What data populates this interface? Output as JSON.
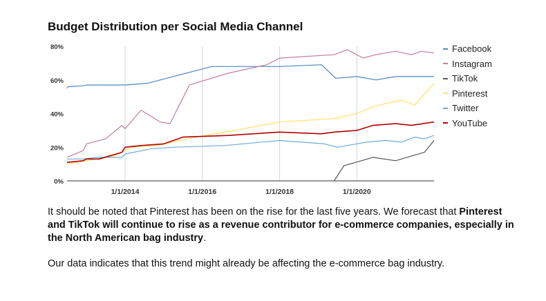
{
  "colors": {
    "Facebook": "#4a86c5",
    "Instagram": "#c27ba0",
    "TikTok": "#555555",
    "Pinterest": "#ffe066",
    "Twitter": "#6fa8dc",
    "YouTube": "#b00000"
  },
  "chart_data": {
    "type": "line",
    "title": "Budget Distribution per Social Media Channel",
    "xlabel": "",
    "ylabel": "",
    "x_range": [
      "2012-07-01",
      "2021-12-31"
    ],
    "ylim": [
      0,
      80
    ],
    "x_ticks": [
      "1/1/2014",
      "1/1/2016",
      "1/1/2018",
      "1/1/2020"
    ],
    "y_ticks": [
      "0%",
      "20%",
      "40%",
      "60%",
      "80%"
    ],
    "grid": "vertical",
    "legend_position": "right",
    "series": [
      {
        "name": "Facebook",
        "points": [
          [
            "2012-07-01",
            55
          ],
          [
            "2012-07-10",
            56
          ],
          [
            "2012-12-01",
            56.5
          ],
          [
            "2013-01-01",
            57
          ],
          [
            "2014-01-01",
            57
          ],
          [
            "2014-08-01",
            58
          ],
          [
            "2015-04-01",
            62
          ],
          [
            "2016-04-01",
            68
          ],
          [
            "2017-01-01",
            68
          ],
          [
            "2018-01-01",
            68
          ],
          [
            "2019-02-01",
            69
          ],
          [
            "2019-06-15",
            61
          ],
          [
            "2020-01-01",
            62
          ],
          [
            "2020-07-01",
            60
          ],
          [
            "2021-01-01",
            62
          ],
          [
            "2021-12-31",
            62
          ]
        ]
      },
      {
        "name": "Instagram",
        "points": [
          [
            "2012-07-01",
            14
          ],
          [
            "2012-12-01",
            18
          ],
          [
            "2013-01-01",
            22
          ],
          [
            "2013-07-01",
            25
          ],
          [
            "2013-12-01",
            33
          ],
          [
            "2014-01-01",
            31
          ],
          [
            "2014-06-01",
            42
          ],
          [
            "2014-12-01",
            35
          ],
          [
            "2015-03-01",
            34
          ],
          [
            "2015-09-01",
            57
          ],
          [
            "2016-09-01",
            64
          ],
          [
            "2017-09-01",
            69
          ],
          [
            "2018-01-01",
            73
          ],
          [
            "2019-06-01",
            75
          ],
          [
            "2019-10-01",
            78
          ],
          [
            "2020-03-01",
            73
          ],
          [
            "2020-07-01",
            75
          ],
          [
            "2021-01-01",
            77
          ],
          [
            "2021-06-01",
            75
          ],
          [
            "2021-09-01",
            77
          ],
          [
            "2021-12-31",
            76
          ]
        ]
      },
      {
        "name": "TikTok",
        "points": [
          [
            "2019-06-01",
            0
          ],
          [
            "2019-09-01",
            9
          ],
          [
            "2020-06-01",
            14
          ],
          [
            "2021-01-01",
            12
          ],
          [
            "2021-10-01",
            17
          ],
          [
            "2021-12-31",
            24
          ]
        ]
      },
      {
        "name": "Pinterest",
        "points": [
          [
            "2012-07-01",
            10
          ],
          [
            "2013-01-01",
            12
          ],
          [
            "2013-10-01",
            15
          ],
          [
            "2014-01-01",
            18
          ],
          [
            "2014-03-01",
            20
          ],
          [
            "2014-11-01",
            21
          ],
          [
            "2015-11-01",
            26
          ],
          [
            "2016-11-01",
            30
          ],
          [
            "2018-01-01",
            35
          ],
          [
            "2019-06-01",
            37
          ],
          [
            "2020-01-01",
            40
          ],
          [
            "2020-06-01",
            44
          ],
          [
            "2020-10-01",
            46
          ],
          [
            "2021-03-01",
            48
          ],
          [
            "2021-07-01",
            45
          ],
          [
            "2021-12-31",
            58
          ]
        ]
      },
      {
        "name": "Twitter",
        "points": [
          [
            "2012-07-01",
            13
          ],
          [
            "2012-12-01",
            13
          ],
          [
            "2013-04-01",
            14
          ],
          [
            "2013-12-01",
            14
          ],
          [
            "2014-01-01",
            16
          ],
          [
            "2014-09-01",
            19
          ],
          [
            "2015-04-01",
            20
          ],
          [
            "2016-08-01",
            21
          ],
          [
            "2018-01-01",
            24
          ],
          [
            "2019-03-01",
            22
          ],
          [
            "2019-07-01",
            20
          ],
          [
            "2020-04-01",
            23
          ],
          [
            "2020-10-01",
            24
          ],
          [
            "2021-03-01",
            23
          ],
          [
            "2021-07-01",
            26
          ],
          [
            "2021-10-01",
            25
          ],
          [
            "2021-12-31",
            27
          ]
        ]
      },
      {
        "name": "YouTube",
        "points": [
          [
            "2012-07-01",
            11
          ],
          [
            "2012-12-01",
            12
          ],
          [
            "2013-01-01",
            13
          ],
          [
            "2013-05-01",
            13
          ],
          [
            "2013-12-01",
            17
          ],
          [
            "2014-01-01",
            20
          ],
          [
            "2014-06-01",
            21
          ],
          [
            "2015-01-01",
            22
          ],
          [
            "2015-07-01",
            26
          ],
          [
            "2016-09-01",
            27
          ],
          [
            "2018-01-01",
            29
          ],
          [
            "2019-02-01",
            28
          ],
          [
            "2019-06-01",
            29
          ],
          [
            "2020-01-01",
            30
          ],
          [
            "2020-06-01",
            33
          ],
          [
            "2021-01-01",
            34
          ],
          [
            "2021-06-01",
            33
          ],
          [
            "2021-12-31",
            35
          ]
        ]
      }
    ]
  },
  "text": {
    "para1_a": "It should be noted that Pinterest has been on the rise for the last five years. We forecast that ",
    "para1_b": "Pinterest and TikTok will continue to rise as a revenue contributor for e-commerce companies, especially in the North American bag industry",
    "para1_c": ".",
    "para2": "Our data indicates that this trend might already be affecting the e-commerce bag industry."
  }
}
